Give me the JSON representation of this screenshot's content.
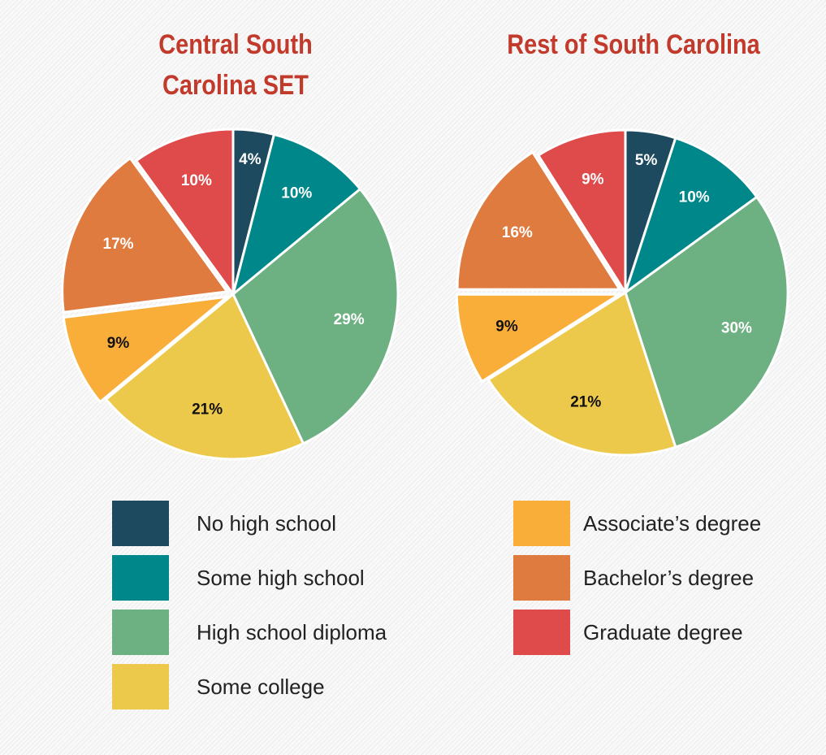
{
  "legend": {
    "labels": [
      "No high school",
      "Some high school",
      "High school diploma",
      "Some college",
      "Associate’s degree",
      "Bachelor’s degree",
      "Graduate degree"
    ],
    "colors": [
      "#1d4a5e",
      "#00878a",
      "#6db081",
      "#ecc94b",
      "#f9ae3a",
      "#e07b40",
      "#df4a4b"
    ]
  },
  "chart_data": [
    {
      "type": "pie",
      "title": "Central South Carolina SET",
      "values": [
        4,
        10,
        29,
        21,
        9,
        17,
        10
      ],
      "value_labels": [
        "4%",
        "10%",
        "29%",
        "21%",
        "9%",
        "17%",
        "10%"
      ],
      "explode": [
        false,
        false,
        false,
        false,
        true,
        true,
        false
      ]
    },
    {
      "type": "pie",
      "title": "Rest of South Carolina",
      "values": [
        5,
        10,
        30,
        21,
        9,
        16,
        9
      ],
      "value_labels": [
        "5%",
        "10%",
        "30%",
        "21%",
        "9%",
        "16%",
        "9%"
      ],
      "explode": [
        false,
        false,
        false,
        false,
        true,
        true,
        false
      ]
    }
  ]
}
